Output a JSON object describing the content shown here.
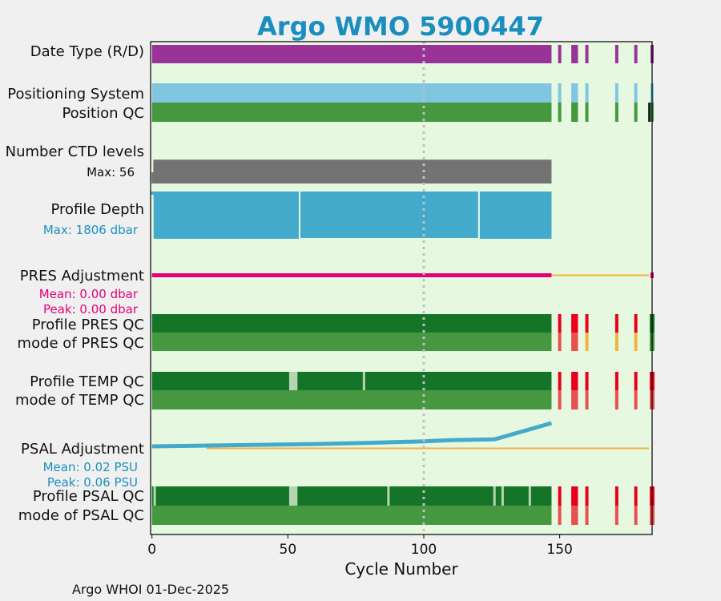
{
  "chart_data": {
    "type": "bar",
    "title": "Argo WMO 5900447",
    "xlabel": "Cycle Number",
    "xlim": [
      -0.5,
      184
    ],
    "xticks": [
      0,
      50,
      100,
      150
    ],
    "vline_cycle": 100,
    "footer": "Argo WHOI 01-Dec-2025",
    "colors": {
      "title": "#1a8fbf",
      "plot_bg": "#e6f9e0",
      "frame": "#000000",
      "date_type": "#993399",
      "positioning": "#80c6e0",
      "position_qc": "#45983f",
      "position_qc_bad": "#222222",
      "ctd": "#737373",
      "depth": "#44aacc",
      "depth_label": "#1a8fbf",
      "pres_adj": "#e6007a",
      "adj_line": "#f0b43c",
      "qc_dark": "#167428",
      "qc_mode": "#45983f",
      "qc_light": "#b4d6b0",
      "red": "#e8001e",
      "salmon": "#e85050",
      "orange": "#f0b43c",
      "psal_adj": "#44aacc",
      "psal_label": "#1a8fbf",
      "vline": "#c0c0c0"
    },
    "rows": {
      "date_type": "Date Type (R/D)",
      "positioning": "Positioning System",
      "position_qc": "Position QC",
      "ctd": "Number CTD levels",
      "ctd_max": "Max: 56",
      "depth": "Profile Depth",
      "depth_max": "Max: 1806 dbar",
      "pres_adj": "PRES Adjustment",
      "pres_mean": "Mean: 0.00 dbar",
      "pres_peak": "Peak: 0.00 dbar",
      "pres_qc": "Profile PRES QC",
      "pres_mode": "mode of PRES QC",
      "temp_qc": "Profile TEMP QC",
      "temp_mode": "mode of TEMP QC",
      "psal_adj": "PSAL Adjustment",
      "psal_mean": "Mean: 0.02 PSU",
      "psal_peak": "Peak: 0.06 PSU",
      "psal_qc": "Profile PSAL QC",
      "psal_mode": "mode of PSAL QC"
    },
    "main_range": [
      0,
      147
    ],
    "late_cycles": [
      150,
      155,
      156,
      160,
      171,
      178,
      184
    ],
    "positioning_late": [
      150,
      155,
      156,
      160,
      171,
      178,
      184
    ],
    "position_qc_bad_cycles": [
      183
    ],
    "temp_qc_gaps": [
      51,
      52,
      53,
      78
    ],
    "psal_qc_gaps": [
      1,
      51,
      52,
      53,
      87,
      126,
      129,
      139
    ],
    "pres_qc_late": [
      {
        "c": 150,
        "top": "red",
        "mode": "salmon"
      },
      {
        "c": 155,
        "top": "red",
        "mode": "salmon"
      },
      {
        "c": 156,
        "top": "red",
        "mode": "salmon"
      },
      {
        "c": 160,
        "top": "red",
        "mode": "orange"
      },
      {
        "c": 171,
        "top": "red",
        "mode": "orange"
      },
      {
        "c": 178,
        "top": "red",
        "mode": "orange"
      },
      {
        "c": 184,
        "top": "dark",
        "mode": "green"
      }
    ],
    "temp_qc_late": [
      {
        "c": 150,
        "top": "red",
        "mode": "salmon"
      },
      {
        "c": 155,
        "top": "red",
        "mode": "salmon"
      },
      {
        "c": 156,
        "top": "red",
        "mode": "salmon"
      },
      {
        "c": 160,
        "top": "red",
        "mode": "salmon"
      },
      {
        "c": 171,
        "top": "red",
        "mode": "salmon"
      },
      {
        "c": 178,
        "top": "red",
        "mode": "salmon"
      },
      {
        "c": 184,
        "top": "red",
        "mode": "salmon"
      }
    ],
    "psal_qc_late": [
      {
        "c": 150,
        "top": "red",
        "mode": "salmon"
      },
      {
        "c": 155,
        "top": "red",
        "mode": "salmon"
      },
      {
        "c": 156,
        "top": "red",
        "mode": "salmon"
      },
      {
        "c": 160,
        "top": "red",
        "mode": "salmon"
      },
      {
        "c": 171,
        "top": "red",
        "mode": "salmon"
      },
      {
        "c": 178,
        "top": "red",
        "mode": "salmon"
      },
      {
        "c": 184,
        "top": "red",
        "mode": "salmon"
      }
    ],
    "depth_series": [
      {
        "from": 0,
        "to": 54,
        "dbar": 1806
      },
      {
        "from": 54,
        "to": 120,
        "dbar": 1774
      },
      {
        "from": 120,
        "to": 147,
        "dbar": 1806
      }
    ],
    "depth_ylim": [
      0,
      1900
    ],
    "ctd_ylim": [
      0,
      60
    ],
    "ctd_series": [
      {
        "from": 0,
        "to": 147,
        "levels": 56
      }
    ],
    "psal_adj_series": {
      "x": [
        0,
        20,
        40,
        60,
        80,
        100,
        110,
        126,
        147
      ],
      "y": [
        0.0,
        0.002,
        0.004,
        0.006,
        0.009,
        0.013,
        0.016,
        0.018,
        0.06
      ]
    },
    "psal_ylim": [
      -0.02,
      0.2
    ]
  }
}
